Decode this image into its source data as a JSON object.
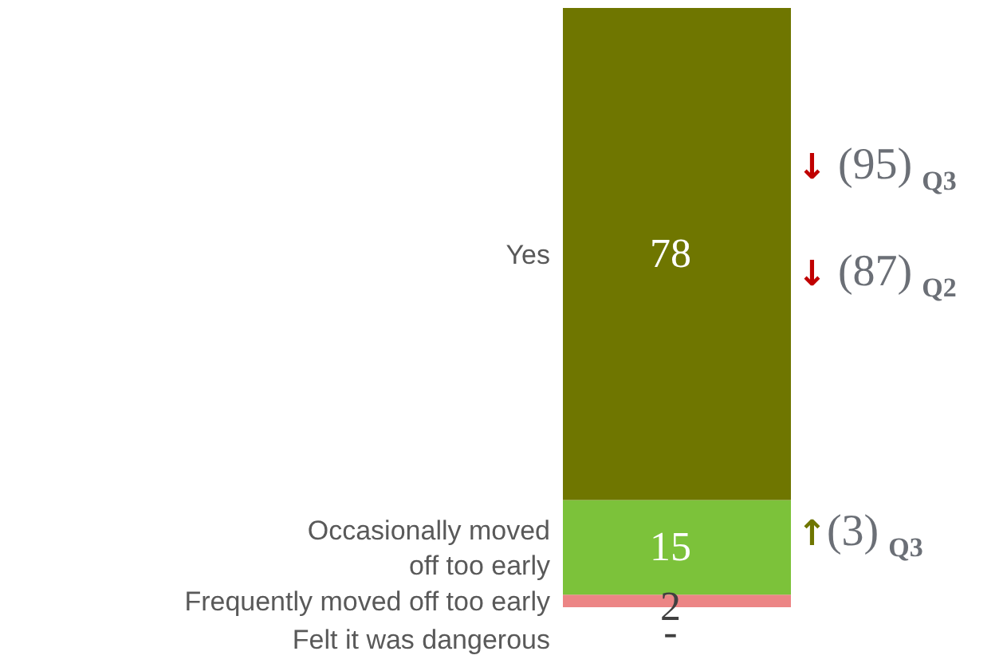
{
  "chart_data": {
    "type": "bar",
    "stacked": true,
    "categories": [
      null
    ],
    "series": [
      {
        "name": "Frequently moved off too early",
        "color": "#ec8585",
        "values": [
          2
        ],
        "value_labels": [
          "2"
        ]
      },
      {
        "name": "Occasionally moved off too early",
        "color": "#7cc23a",
        "values": [
          15
        ],
        "value_labels": [
          "15"
        ]
      },
      {
        "name": "Yes",
        "color": "#6f7600",
        "values": [
          78
        ],
        "value_labels": [
          "78"
        ]
      }
    ],
    "annotations": [
      "↓ (95)$_{Q3}$",
      "↓ (87)$_{Q2}$",
      "↑(3)$_{Q3}$",
      "Felt it was dangerous",
      "-"
    ],
    "grid": false,
    "legend": false
  }
}
